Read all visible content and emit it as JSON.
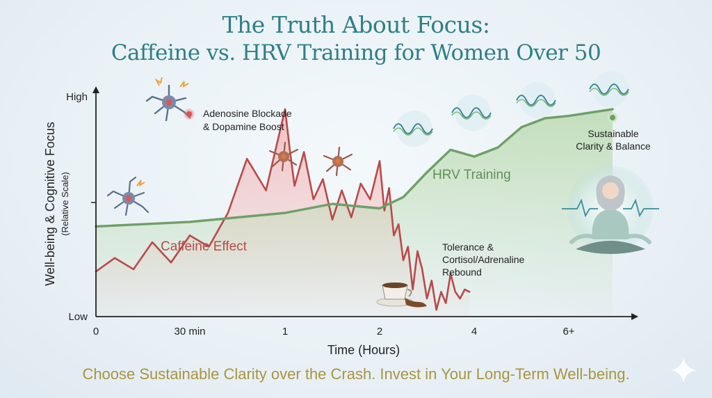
{
  "title_line1": "The Truth About Focus:",
  "title_line2": "Caffeine vs. HRV Training for Women Over 50",
  "footer": "Choose Sustainable Clarity over the Crash. Invest in Your Long-Term Well-being.",
  "colors": {
    "title": "#2f7f86",
    "caffeine": "#b84a4a",
    "caffeine_fill": "#f2b8b8",
    "hrv": "#6f9f68",
    "hrv_fill": "#bfdcb5",
    "footer": "#a9953e",
    "axis": "#222222"
  },
  "chart_data": {
    "type": "line",
    "xlabel": "Time (Hours)",
    "ylabel": "Well-being & Cognitive Focus",
    "ylabel_sub": "(Relative Scale)",
    "x_ticks": [
      "0",
      "30 min",
      "1",
      "2",
      "4",
      "6+"
    ],
    "y_ticks": [
      "Low",
      "High"
    ],
    "ylim": [
      0,
      100
    ],
    "grid": false,
    "series": [
      {
        "name": "Caffeine Effect",
        "x": [
          0,
          0.1,
          0.2,
          0.3,
          0.4,
          0.5,
          0.6,
          0.7,
          0.8,
          0.9,
          1.0,
          1.05,
          1.1,
          1.2,
          1.3,
          1.4,
          1.5,
          1.6,
          1.7,
          1.8,
          1.9,
          2.0,
          2.1,
          2.2,
          2.3,
          2.4,
          2.5,
          2.6,
          2.7,
          2.8,
          2.9,
          3.0,
          3.1,
          3.2,
          3.3,
          3.4,
          3.5,
          3.6,
          3.7,
          3.8,
          3.9
        ],
        "values": [
          20,
          26,
          21,
          33,
          24,
          36,
          31,
          46,
          70,
          56,
          92,
          74,
          58,
          73,
          52,
          61,
          43,
          56,
          44,
          59,
          52,
          69,
          47,
          57,
          36,
          41,
          25,
          31,
          12,
          29,
          21,
          8,
          16,
          3,
          11,
          6,
          19,
          11,
          8,
          12,
          11
        ],
        "annotations": [
          "Adenosine Blockade",
          "& Dopamine Boost",
          "Tolerance &",
          "Cortisol/Adrenaline",
          "Rebound"
        ]
      },
      {
        "name": "HRV Training",
        "x": [
          0,
          0.5,
          1.0,
          1.5,
          2.0,
          2.5,
          3.0,
          3.5,
          4.0,
          4.5,
          5.0,
          5.5,
          6.0,
          6.5
        ],
        "values": [
          40,
          42,
          46,
          50,
          48,
          53,
          64,
          74,
          71,
          75,
          84,
          88,
          89,
          92
        ],
        "annotations": [
          "Sustainable",
          "Clarity & Balance"
        ]
      }
    ]
  }
}
